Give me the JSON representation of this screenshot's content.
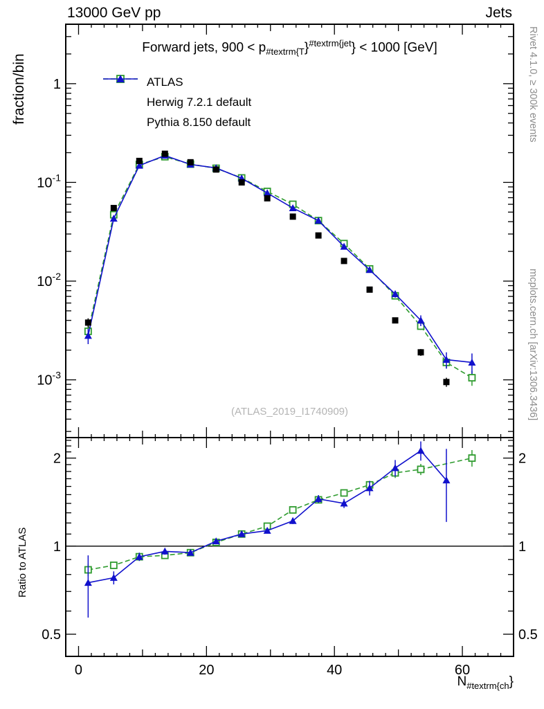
{
  "header": {
    "left_label": "13000 GeV pp",
    "right_label": "Jets"
  },
  "panel_title_parts": [
    {
      "t": "Forward jets, 900 < p"
    },
    {
      "sub": "#textrm{T"
    },
    {
      "t": "}"
    },
    {
      "sup": "#textrm{jet"
    },
    {
      "t": "} < 1000 [GeV]"
    }
  ],
  "legend": {
    "items": [
      {
        "label": "ATLAS",
        "marker": "square-filled",
        "line": "none",
        "color": "#000000"
      },
      {
        "label": "Herwig 7.2.1 default",
        "marker": "square-open",
        "line": "dashed",
        "color": "#2e9b2e"
      },
      {
        "label": "Pythia 8.150 default",
        "marker": "triangle-filled",
        "line": "solid",
        "color": "#1111cc"
      }
    ]
  },
  "watermark": "(ATLAS_2019_I1740909)",
  "side_notes": {
    "top_right": "Rivet 4.1.0, ≥ 300k events",
    "bottom_right": "mcplots.cern.ch [arXiv:1306.3436]"
  },
  "axes": {
    "top_panel_ylabel": "fraction/bin",
    "ratio_panel_ylabel": "Ratio to ATLAS",
    "xlabel_parts": [
      {
        "t": "N"
      },
      {
        "sub": "#textrm{ch"
      },
      {
        "t": "}"
      }
    ],
    "x_ticks": [
      0,
      20,
      40,
      60
    ],
    "top_y_ticks": [
      {
        "value": 1,
        "base": "1",
        "exp": ""
      },
      {
        "value": 0.1,
        "base": "10",
        "exp": "-1"
      },
      {
        "value": 0.01,
        "base": "10",
        "exp": "-2"
      },
      {
        "value": 0.001,
        "base": "10",
        "exp": "-3"
      }
    ],
    "ratio_y_ticks": [
      {
        "value": 2,
        "label": "2"
      },
      {
        "value": 1,
        "label": "1"
      },
      {
        "value": 0.5,
        "label": "0.5"
      }
    ]
  },
  "colors": {
    "frame": "#000000",
    "gray_text": "#8c8c8c",
    "watermark": "#b4b4b4",
    "ref_line": "#000000"
  },
  "chart_data": {
    "type": "line",
    "title": "Forward jets, 900 < p_#textrm{T}^#textrm{jet} < 1000 [GeV]",
    "xlabel": "N_#textrm{ch}",
    "panels": [
      {
        "name": "fraction-per-bin",
        "ylabel": "fraction/bin",
        "yscale": "log",
        "ylim": [
          0.00026,
          4.0
        ],
        "xlim": [
          -2,
          68
        ],
        "series": [
          {
            "name": "ATLAS",
            "marker": "square-filled",
            "line": "none",
            "color": "#000000",
            "x": [
              1.5,
              5.5,
              9.5,
              13.5,
              17.5,
              21.5,
              25.5,
              29.5,
              33.5,
              37.5,
              41.5,
              45.5,
              49.5,
              53.5,
              57.5
            ],
            "y": [
              0.0038,
              0.055,
              0.165,
              0.195,
              0.16,
              0.135,
              0.1,
              0.069,
              0.045,
              0.029,
              0.016,
              0.0082,
              0.004,
              0.0019,
              0.00095
            ],
            "yerr": [
              0.0004,
              0.003,
              0.005,
              0.005,
              0.004,
              0.004,
              0.003,
              0.002,
              0.0015,
              0.001,
              0.0007,
              0.0004,
              0.00025,
              0.00015,
              0.0001
            ]
          },
          {
            "name": "Herwig 7.2.1 default",
            "marker": "square-open",
            "line": "dashed",
            "color": "#2e9b2e",
            "x": [
              1.5,
              5.5,
              9.5,
              13.5,
              17.5,
              21.5,
              25.5,
              29.5,
              33.5,
              37.5,
              41.5,
              45.5,
              49.5,
              53.5,
              57.5,
              61.5
            ],
            "y": [
              0.0031,
              0.047,
              0.152,
              0.182,
              0.153,
              0.139,
              0.111,
              0.081,
              0.06,
              0.041,
              0.024,
              0.0133,
              0.0071,
              0.0035,
              0.0015,
              0.00105
            ],
            "yerr": [
              0.0003,
              0.0012,
              0.002,
              0.002,
              0.002,
              0.002,
              0.0018,
              0.0015,
              0.0013,
              0.001,
              0.0008,
              0.0006,
              0.00045,
              0.0003,
              0.0002,
              0.00018
            ]
          },
          {
            "name": "Pythia 8.150 default",
            "marker": "triangle-filled",
            "line": "solid",
            "color": "#1111cc",
            "x": [
              1.5,
              5.5,
              9.5,
              13.5,
              17.5,
              21.5,
              25.5,
              29.5,
              33.5,
              37.5,
              41.5,
              45.5,
              49.5,
              53.5,
              57.5,
              61.5
            ],
            "y": [
              0.0028,
              0.043,
              0.148,
              0.187,
              0.152,
              0.14,
              0.11,
              0.078,
              0.055,
              0.041,
              0.0224,
              0.013,
              0.0074,
              0.004,
              0.0016,
              0.0015
            ],
            "yerr": [
              0.0005,
              0.002,
              0.003,
              0.003,
              0.0025,
              0.0022,
              0.002,
              0.0017,
              0.0014,
              0.0012,
              0.0009,
              0.0008,
              0.0006,
              0.0005,
              0.0003,
              0.00035
            ]
          }
        ]
      },
      {
        "name": "ratio-to-atlas",
        "ylabel": "Ratio to ATLAS",
        "yscale": "log",
        "ylim": [
          0.42,
          2.35
        ],
        "xlim": [
          -2,
          68
        ],
        "refline": 1,
        "series": [
          {
            "name": "Herwig 7.2.1 default",
            "marker": "square-open",
            "line": "dashed",
            "color": "#2e9b2e",
            "x": [
              1.5,
              5.5,
              9.5,
              13.5,
              17.5,
              21.5,
              25.5,
              29.5,
              33.5,
              37.5,
              41.5,
              45.5,
              49.5,
              53.5,
              61.5
            ],
            "y": [
              0.83,
              0.86,
              0.92,
              0.93,
              0.95,
              1.03,
              1.1,
              1.17,
              1.33,
              1.44,
              1.52,
              1.62,
              1.78,
              1.83,
              2.0
            ],
            "yerr": [
              0.04,
              0.02,
              0.02,
              0.02,
              0.02,
              0.02,
              0.02,
              0.025,
              0.03,
              0.035,
              0.04,
              0.05,
              0.07,
              0.08,
              0.13
            ]
          },
          {
            "name": "Pythia 8.150 default",
            "marker": "triangle-filled",
            "line": "solid",
            "color": "#1111cc",
            "x": [
              1.5,
              5.5,
              9.5,
              13.5,
              17.5,
              21.5,
              25.5,
              29.5,
              33.5,
              37.5,
              41.5,
              45.5,
              49.5,
              53.5,
              57.5
            ],
            "y": [
              0.75,
              0.78,
              0.92,
              0.96,
              0.95,
              1.04,
              1.1,
              1.13,
              1.22,
              1.45,
              1.4,
              1.58,
              1.85,
              2.12,
              1.68
            ],
            "yerr": [
              0.18,
              0.04,
              0.03,
              0.025,
              0.02,
              0.02,
              0.02,
              0.025,
              0.03,
              0.045,
              0.05,
              0.09,
              0.12,
              0.16,
              0.47
            ]
          }
        ]
      }
    ]
  }
}
